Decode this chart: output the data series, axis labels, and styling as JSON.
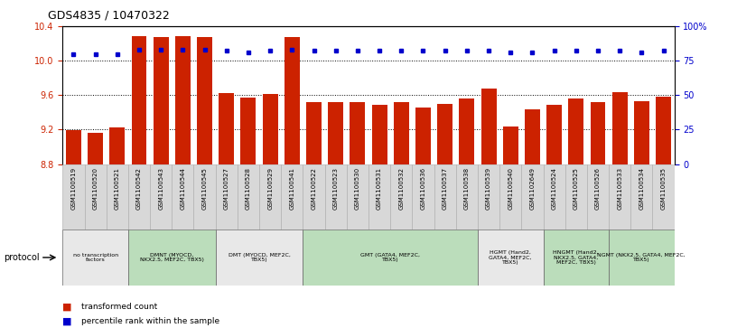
{
  "title": "GDS4835 / 10470322",
  "samples": [
    "GSM1100519",
    "GSM1100520",
    "GSM1100521",
    "GSM1100542",
    "GSM1100543",
    "GSM1100544",
    "GSM1100545",
    "GSM1100527",
    "GSM1100528",
    "GSM1100529",
    "GSM1100541",
    "GSM1100522",
    "GSM1100523",
    "GSM1100530",
    "GSM1100531",
    "GSM1100532",
    "GSM1100536",
    "GSM1100537",
    "GSM1100538",
    "GSM1100539",
    "GSM1100540",
    "GSM1102649",
    "GSM1100524",
    "GSM1100525",
    "GSM1100526",
    "GSM1100533",
    "GSM1100534",
    "GSM1100535"
  ],
  "bar_values": [
    9.19,
    9.16,
    9.23,
    10.28,
    10.27,
    10.28,
    10.27,
    9.62,
    9.57,
    9.61,
    10.27,
    9.52,
    9.52,
    9.52,
    9.49,
    9.52,
    9.46,
    9.5,
    9.56,
    9.68,
    9.24,
    9.43,
    9.49,
    9.56,
    9.52,
    9.63,
    9.53,
    9.58
  ],
  "percentile_values": [
    80,
    80,
    80,
    83,
    83,
    83,
    83,
    82,
    81,
    82,
    83,
    82,
    82,
    82,
    82,
    82,
    82,
    82,
    82,
    82,
    81,
    81,
    82,
    82,
    82,
    82,
    81,
    82
  ],
  "ylim_left": [
    8.8,
    10.4
  ],
  "ylim_right": [
    0,
    100
  ],
  "yticks_left": [
    8.8,
    9.2,
    9.6,
    10.0,
    10.4
  ],
  "yticks_right": [
    0,
    25,
    50,
    75,
    100
  ],
  "bar_color": "#cc2200",
  "dot_color": "#0000cc",
  "protocol_groups": [
    {
      "label": "no transcription\nfactors",
      "start": 0,
      "end": 3,
      "color": "#e8e8e8"
    },
    {
      "label": "DMNT (MYOCD,\nNKX2.5, MEF2C, TBX5)",
      "start": 3,
      "end": 7,
      "color": "#bbddbb"
    },
    {
      "label": "DMT (MYOCD, MEF2C,\nTBX5)",
      "start": 7,
      "end": 11,
      "color": "#e8e8e8"
    },
    {
      "label": "GMT (GATA4, MEF2C,\nTBX5)",
      "start": 11,
      "end": 19,
      "color": "#bbddbb"
    },
    {
      "label": "HGMT (Hand2,\nGATA4, MEF2C,\nTBX5)",
      "start": 19,
      "end": 22,
      "color": "#e8e8e8"
    },
    {
      "label": "HNGMT (Hand2,\nNKX2.5, GATA4,\nMEF2C, TBX5)",
      "start": 22,
      "end": 25,
      "color": "#bbddbb"
    },
    {
      "label": "NGMT (NKX2.5, GATA4, MEF2C,\nTBX5)",
      "start": 25,
      "end": 28,
      "color": "#bbddbb"
    }
  ],
  "protocol_label": "protocol"
}
